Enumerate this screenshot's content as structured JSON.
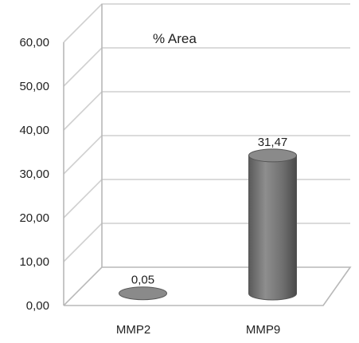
{
  "chart_data": {
    "type": "bar",
    "subtype": "3d-cylinder",
    "title": "% Area",
    "categories": [
      "MMP2",
      "MMP9"
    ],
    "values": [
      0.05,
      31.47
    ],
    "value_labels": [
      "0,05",
      "31,47"
    ],
    "ylim": [
      0,
      60
    ],
    "yticks": [
      "0,00",
      "10,00",
      "20,00",
      "30,00",
      "40,00",
      "50,00",
      "60,00"
    ],
    "xlabel": "",
    "ylabel": "",
    "grid": true,
    "legend": "none",
    "bar_color": "#7d7d7d"
  }
}
